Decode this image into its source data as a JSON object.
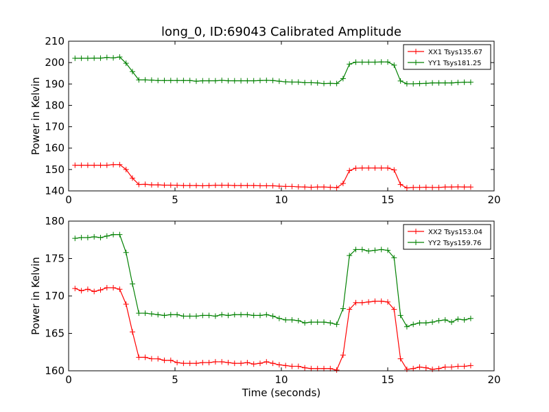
{
  "title": "long_0, ID:69043 Calibrated Amplitude",
  "chart_data": [
    {
      "type": "line",
      "ylabel": "Power in Kelvin",
      "xlabel": "",
      "xlim": [
        0,
        20
      ],
      "ylim": [
        140,
        210
      ],
      "xticks": [
        "0",
        "5",
        "10",
        "15",
        "20"
      ],
      "yticks": [
        "140",
        "150",
        "160",
        "170",
        "180",
        "190",
        "200",
        "210"
      ],
      "legend_position": "top-right",
      "x": [
        0.3,
        0.6,
        0.9,
        1.2,
        1.5,
        1.8,
        2.1,
        2.4,
        2.7,
        3.0,
        3.3,
        3.6,
        3.9,
        4.2,
        4.5,
        4.8,
        5.1,
        5.4,
        5.7,
        6.0,
        6.3,
        6.6,
        6.9,
        7.2,
        7.5,
        7.8,
        8.1,
        8.4,
        8.7,
        9.0,
        9.3,
        9.6,
        9.9,
        10.2,
        10.5,
        10.8,
        11.1,
        11.4,
        11.7,
        12.0,
        12.3,
        12.6,
        12.9,
        13.2,
        13.5,
        13.8,
        14.1,
        14.4,
        14.7,
        15.0,
        15.3,
        15.6,
        15.9,
        16.2,
        16.5,
        16.8,
        17.1,
        17.4,
        17.7,
        18.0,
        18.3,
        18.6,
        18.9
      ],
      "series": [
        {
          "name": "XX1 Tsys135.67",
          "color": "#ff0000",
          "values": [
            152,
            152,
            152,
            152,
            152,
            152,
            152.3,
            152.3,
            150,
            146,
            143,
            143.1,
            142.8,
            142.8,
            142.7,
            142.7,
            142.6,
            142.5,
            142.5,
            142.5,
            142.4,
            142.5,
            142.6,
            142.6,
            142.6,
            142.5,
            142.5,
            142.5,
            142.5,
            142.4,
            142.4,
            142.4,
            142.2,
            142.1,
            142.1,
            141.9,
            141.8,
            141.7,
            141.8,
            141.8,
            141.7,
            141.5,
            143.5,
            149.5,
            150.6,
            150.7,
            150.7,
            150.7,
            150.7,
            150.7,
            149.8,
            143,
            141.4,
            141.6,
            141.6,
            141.7,
            141.6,
            141.6,
            141.8,
            141.8,
            141.9,
            141.8,
            141.8
          ]
        },
        {
          "name": "YY1 Tsys181.25",
          "color": "#008000",
          "values": [
            202,
            202,
            202,
            202.1,
            202.1,
            202.4,
            202.2,
            202.6,
            199.7,
            195.8,
            191.9,
            191.9,
            191.8,
            191.6,
            191.6,
            191.6,
            191.6,
            191.6,
            191.6,
            191.3,
            191.5,
            191.5,
            191.5,
            191.7,
            191.5,
            191.5,
            191.5,
            191.5,
            191.5,
            191.6,
            191.7,
            191.6,
            191.3,
            191,
            190.9,
            190.9,
            190.6,
            190.6,
            190.5,
            190.2,
            190.3,
            190.2,
            192.5,
            199.3,
            200.2,
            200.2,
            200.2,
            200.2,
            200.3,
            200.3,
            198.8,
            191.4,
            190.1,
            190.1,
            190.2,
            190.3,
            190.5,
            190.5,
            190.5,
            190.5,
            190.7,
            190.8,
            190.8
          ]
        }
      ]
    },
    {
      "type": "line",
      "ylabel": "Power in Kelvin",
      "xlabel": "Time (seconds)",
      "xlim": [
        0,
        20
      ],
      "ylim": [
        160,
        180
      ],
      "xticks": [
        "0",
        "5",
        "10",
        "15",
        "20"
      ],
      "yticks": [
        "160",
        "165",
        "170",
        "175",
        "180"
      ],
      "legend_position": "top-right",
      "x": [
        0.3,
        0.6,
        0.9,
        1.2,
        1.5,
        1.8,
        2.1,
        2.4,
        2.7,
        3.0,
        3.3,
        3.6,
        3.9,
        4.2,
        4.5,
        4.8,
        5.1,
        5.4,
        5.7,
        6.0,
        6.3,
        6.6,
        6.9,
        7.2,
        7.5,
        7.8,
        8.1,
        8.4,
        8.7,
        9.0,
        9.3,
        9.6,
        9.9,
        10.2,
        10.5,
        10.8,
        11.1,
        11.4,
        11.7,
        12.0,
        12.3,
        12.6,
        12.9,
        13.2,
        13.5,
        13.8,
        14.1,
        14.4,
        14.7,
        15.0,
        15.3,
        15.6,
        15.9,
        16.2,
        16.5,
        16.8,
        17.1,
        17.4,
        17.7,
        18.0,
        18.3,
        18.6,
        18.9
      ],
      "series": [
        {
          "name": "XX2 Tsys153.04",
          "color": "#ff0000",
          "values": [
            171,
            170.7,
            170.9,
            170.6,
            170.8,
            171.1,
            171.1,
            170.9,
            168.9,
            165.2,
            161.8,
            161.8,
            161.6,
            161.6,
            161.4,
            161.4,
            161.1,
            161,
            161,
            161,
            161.1,
            161.1,
            161.2,
            161.2,
            161.1,
            161,
            161,
            161.1,
            160.9,
            161,
            161.2,
            161,
            160.8,
            160.7,
            160.6,
            160.6,
            160.4,
            160.3,
            160.3,
            160.3,
            160.3,
            160.1,
            162.1,
            168.2,
            169.1,
            169.1,
            169.2,
            169.3,
            169.3,
            169.2,
            168.2,
            161.6,
            160.2,
            160.3,
            160.5,
            160.4,
            160.2,
            160.3,
            160.5,
            160.5,
            160.6,
            160.6,
            160.7
          ]
        },
        {
          "name": "YY2 Tsys159.76",
          "color": "#008000",
          "values": [
            177.7,
            177.8,
            177.8,
            177.9,
            177.8,
            178,
            178.2,
            178.2,
            175.8,
            171.6,
            167.7,
            167.7,
            167.6,
            167.5,
            167.4,
            167.5,
            167.5,
            167.3,
            167.3,
            167.3,
            167.4,
            167.4,
            167.3,
            167.5,
            167.4,
            167.5,
            167.5,
            167.5,
            167.4,
            167.4,
            167.5,
            167.3,
            167,
            166.8,
            166.8,
            166.7,
            166.4,
            166.5,
            166.5,
            166.5,
            166.4,
            166.2,
            168.3,
            175.4,
            176.2,
            176.2,
            176,
            176.1,
            176.2,
            176.1,
            175.1,
            167.4,
            165.9,
            166.2,
            166.4,
            166.4,
            166.5,
            166.7,
            166.8,
            166.5,
            166.9,
            166.8,
            167
          ]
        }
      ]
    }
  ]
}
